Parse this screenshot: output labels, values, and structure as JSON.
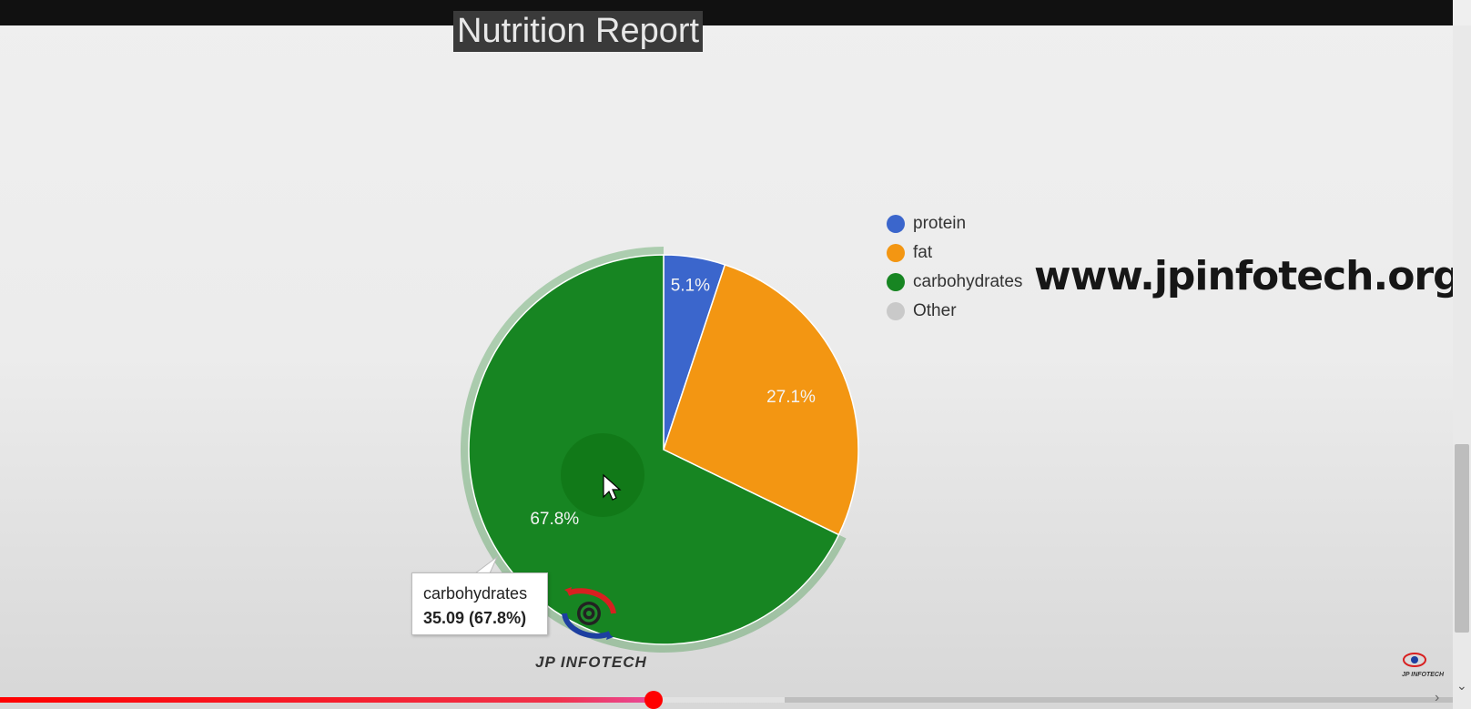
{
  "chart_data": {
    "type": "pie",
    "title": "Nutrition Report",
    "slices": [
      {
        "label": "protein",
        "percent": 5.1,
        "color": "#3b66cc"
      },
      {
        "label": "fat",
        "percent": 27.1,
        "color": "#f39612"
      },
      {
        "label": "carbohydrates",
        "percent": 67.8,
        "color": "#178522"
      },
      {
        "label": "Other",
        "percent": 0,
        "color": "#c9c9c9"
      }
    ],
    "legend_position": "right"
  },
  "tooltip": {
    "label": "carbohydrates",
    "value_text": "35.09 (67.8%)",
    "highlighted_series": "carbohydrates"
  },
  "watermark": "www.jpinfotech.org",
  "logo": {
    "caption": "JP INFOTECH",
    "small_caption": "JP INFOTECH"
  },
  "player": {
    "played_fraction": 0.45,
    "buffered_fraction": 0.54
  }
}
